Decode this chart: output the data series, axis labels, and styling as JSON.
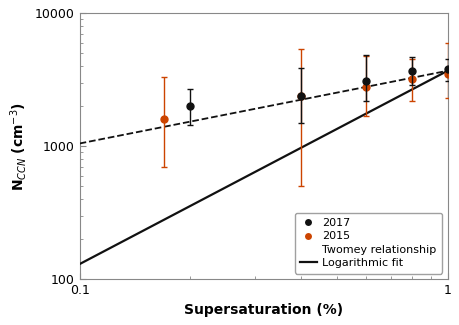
{
  "xlabel": "Supersaturation (%)",
  "ylabel": "N$_{CCN}$ (cm$^{-3}$)",
  "xlim": [
    0.1,
    1.0
  ],
  "ylim": [
    100,
    10000
  ],
  "data_2017": {
    "x": [
      0.2,
      0.4,
      0.6,
      0.8,
      1.0
    ],
    "y": [
      2000,
      2400,
      3100,
      3700,
      3800
    ],
    "yerr_low": [
      550,
      900,
      900,
      800,
      700
    ],
    "yerr_high": [
      700,
      1500,
      1800,
      1000,
      700
    ],
    "color": "#111111",
    "label": "2017"
  },
  "data_2015": {
    "x": [
      0.17,
      0.4,
      0.6,
      0.8,
      1.0
    ],
    "y": [
      1600,
      2400,
      2800,
      3200,
      3500
    ],
    "yerr_low": [
      900,
      1900,
      1100,
      1000,
      1200
    ],
    "yerr_high": [
      1700,
      3000,
      2000,
      1300,
      2500
    ],
    "color": "#cc4400",
    "label": "2015"
  },
  "twomey_C": 3700,
  "twomey_k": 0.547,
  "logfit_A": 3700,
  "logfit_k": 1.454,
  "background_color": "#ffffff",
  "line_color": "#111111"
}
